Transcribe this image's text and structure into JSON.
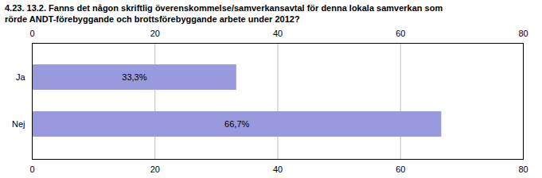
{
  "chart_data": {
    "type": "bar",
    "orientation": "horizontal",
    "title": "4.23. 13.2. Fanns det någon skriftlig överenskommelse/samverkansavtal för denna lokala samverkan som\nrörde ANDT-förebyggande och brottsförebyggande arbete under 2012?",
    "categories": [
      "Nej",
      "Ja"
    ],
    "values": [
      66.7,
      33.3
    ],
    "value_labels": [
      "66,7%",
      "33,3%"
    ],
    "data_labels": true,
    "color": "#9999dd",
    "xlim": [
      0,
      80
    ],
    "xticks": [
      0,
      20,
      40,
      60,
      80
    ],
    "grid": true
  }
}
